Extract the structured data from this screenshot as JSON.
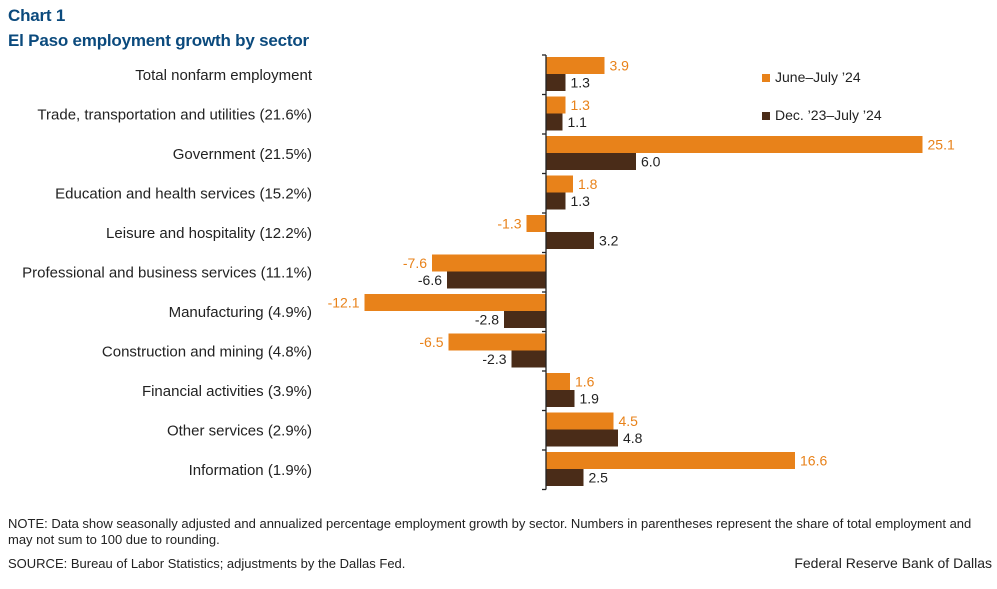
{
  "chart_label": "Chart 1",
  "chart_title": "El Paso employment growth by sector",
  "note": "NOTE: Data show seasonally adjusted and annualized percentage employment growth by sector. Numbers in parentheses represent the share of total employment and may not sum to 100 due to rounding.",
  "source": "SOURCE: Bureau of Labor Statistics; adjustments by the Dallas Fed.",
  "credit": "Federal Reserve Bank of Dallas",
  "colors": {
    "series1": "#e8821a",
    "series2": "#4a2c18",
    "axis": "#222222",
    "title": "#0b4a7d"
  },
  "chart_data": {
    "type": "bar",
    "orientation": "horizontal",
    "title": "El Paso employment growth by sector",
    "xlabel": "",
    "ylabel": "",
    "xlim": [
      -13.3,
      25.1
    ],
    "grid": false,
    "legend_position": "top-right",
    "categories": [
      "Total nonfarm employment",
      "Trade, transportation and utilities (21.6%)",
      "Government (21.5%)",
      "Education and health services (15.2%)",
      "Leisure and hospitality (12.2%)",
      "Professional and business services (11.1%)",
      "Manufacturing (4.9%)",
      "Construction and mining (4.8%)",
      "Financial activities (3.9%)",
      "Other services (2.9%)",
      "Information (1.9%)"
    ],
    "series": [
      {
        "name": "June–July ’24",
        "values": [
          3.9,
          1.3,
          25.1,
          1.8,
          -1.3,
          -7.6,
          -12.1,
          -6.5,
          1.6,
          4.5,
          16.6
        ],
        "labels": [
          "3.9",
          "1.3",
          "25.1",
          "1.8",
          "-1.3",
          "-7.6",
          "-12.1",
          "-6.5",
          "1.6",
          "4.5",
          "16.6"
        ]
      },
      {
        "name": "Dec. ’23–July ’24",
        "values": [
          1.3,
          1.1,
          6.0,
          1.3,
          3.2,
          -6.6,
          -2.8,
          -2.3,
          1.9,
          4.8,
          2.5
        ],
        "labels": [
          "1.3",
          "1.1",
          "6.0",
          "1.3",
          "3.2",
          "-6.6",
          "-2.8",
          "-2.3",
          "1.9",
          "4.8",
          "2.5"
        ]
      }
    ]
  }
}
